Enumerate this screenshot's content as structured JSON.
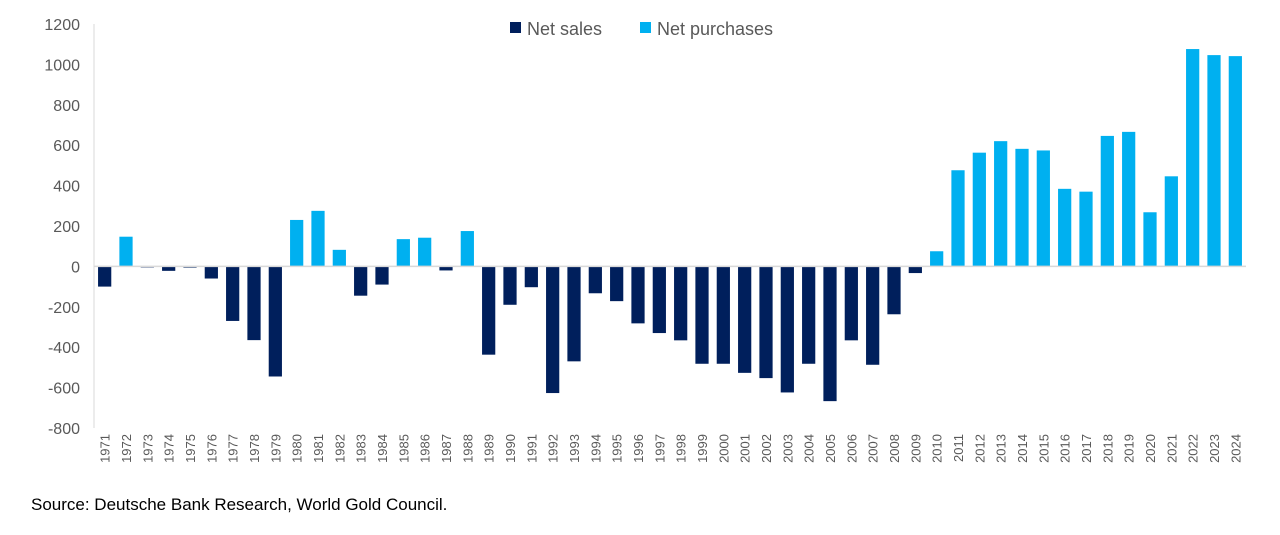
{
  "chart_data": {
    "type": "bar",
    "title": "",
    "xlabel": "",
    "ylabel": "",
    "ylim": [
      -800,
      1200
    ],
    "yticks": [
      -800,
      -600,
      -400,
      -200,
      0,
      200,
      400,
      600,
      800,
      1000,
      1200
    ],
    "grid": false,
    "legend_placement": "top-center",
    "categories": [
      "1971",
      "1972",
      "1973",
      "1974",
      "1975",
      "1976",
      "1977",
      "1978",
      "1979",
      "1980",
      "1981",
      "1982",
      "1983",
      "1984",
      "1985",
      "1986",
      "1987",
      "1988",
      "1989",
      "1990",
      "1991",
      "1992",
      "1993",
      "1994",
      "1995",
      "1996",
      "1997",
      "1998",
      "1999",
      "2000",
      "2001",
      "2002",
      "2003",
      "2004",
      "2005",
      "2006",
      "2007",
      "2008",
      "2009",
      "2010",
      "2011",
      "2012",
      "2013",
      "2014",
      "2015",
      "2016",
      "2017",
      "2018",
      "2019",
      "2020",
      "2021",
      "2022",
      "2023",
      "2024"
    ],
    "values": [
      -100,
      147,
      -5,
      -22,
      -6,
      -60,
      -270,
      -365,
      -545,
      230,
      275,
      82,
      -145,
      -90,
      135,
      142,
      -20,
      175,
      -437,
      -190,
      -103,
      -627,
      -470,
      -133,
      -172,
      -282,
      -330,
      -366,
      -482,
      -482,
      -527,
      -553,
      -624,
      -482,
      -667,
      -366,
      -487,
      -237,
      -33,
      75,
      476,
      563,
      620,
      582,
      574,
      384,
      370,
      646,
      666,
      268,
      446,
      1076,
      1046,
      1041
    ],
    "series": [
      {
        "name": "Net sales",
        "color": "#001f5c",
        "rule": "negative values"
      },
      {
        "name": "Net purchases",
        "color": "#00b0f0",
        "rule": "positive values"
      }
    ]
  },
  "source": "Source: Deutsche Bank Research, World Gold Council."
}
